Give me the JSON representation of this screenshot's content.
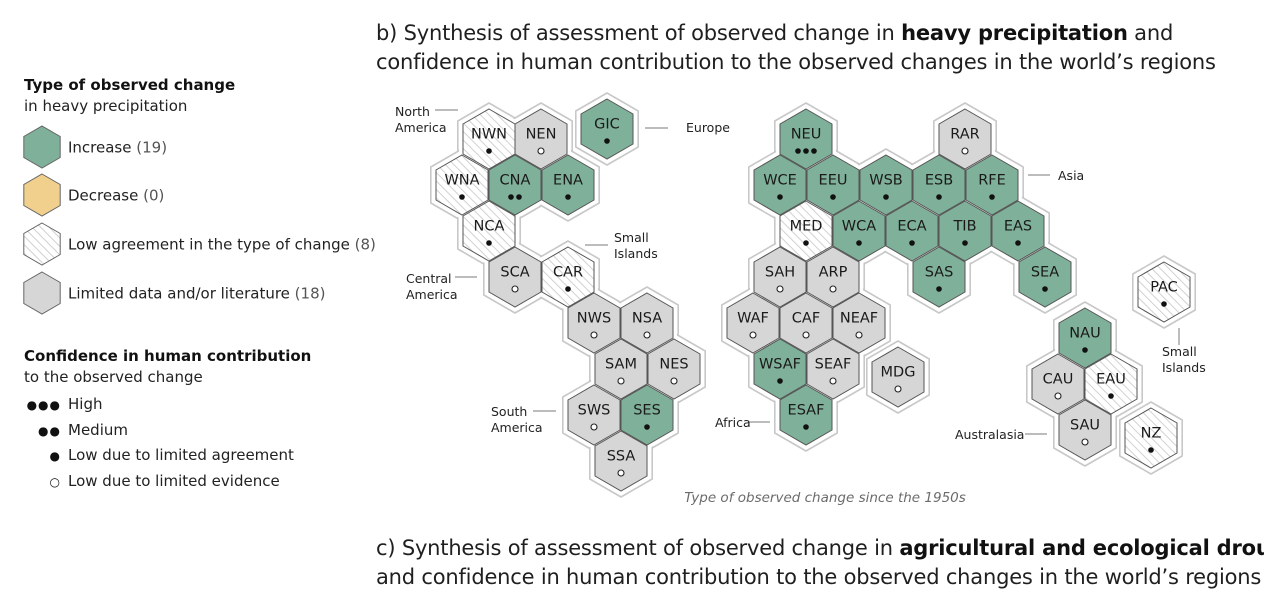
{
  "legend": {
    "type_heading": "Type of observed change",
    "type_sub": "in heavy precipitation",
    "items": [
      {
        "key": "increase",
        "label": "Increase",
        "count": "(19)"
      },
      {
        "key": "decrease",
        "label": "Decrease",
        "count": "(0)"
      },
      {
        "key": "low",
        "label": "Low agreement in the type of change",
        "count": "(8)"
      },
      {
        "key": "limited",
        "label": "Limited data and/or literature",
        "count": "(18)"
      }
    ],
    "conf_heading": "Confidence in human contribution",
    "conf_sub": "to the observed change",
    "conf_items": [
      {
        "dots": "●●●",
        "label": "High"
      },
      {
        "dots": "●●",
        "label": "Medium"
      },
      {
        "dots": "●",
        "label": "Low due to limited agreement"
      },
      {
        "dots": "○",
        "label": "Low due to limited evidence"
      }
    ]
  },
  "title_b": {
    "line1_pre": "b) Synthesis of assessment of observed change in ",
    "line1_bold": "heavy precipitation",
    "line1_post": " and",
    "line2": "confidence in human contribution to the observed changes in the world’s regions"
  },
  "title_c": {
    "line1_pre": "c) Synthesis of assessment of observed change in ",
    "line1_bold": "agricultural and ecological drought",
    "line2": "and confidence in human contribution to the observed changes in the world’s regions"
  },
  "caption": "Type of observed change since the 1950s",
  "colors": {
    "increase": "#7fb09a",
    "decrease": "#f1cf8c",
    "limited": "#d6d6d6",
    "low": "#ffffff",
    "stroke": "#4a4a4a",
    "halo": "#c8c8c8"
  },
  "continent_labels": [
    {
      "id": "north-america",
      "text": [
        "North",
        "America"
      ]
    },
    {
      "id": "europe",
      "text": [
        "Europe"
      ]
    },
    {
      "id": "asia",
      "text": [
        "Asia"
      ]
    },
    {
      "id": "small-islands-1",
      "text": [
        "Small",
        "Islands"
      ]
    },
    {
      "id": "central-america",
      "text": [
        "Central",
        "America"
      ]
    },
    {
      "id": "south-america",
      "text": [
        "South",
        "America"
      ]
    },
    {
      "id": "africa",
      "text": [
        "Africa"
      ]
    },
    {
      "id": "australasia",
      "text": [
        "Australasia"
      ]
    },
    {
      "id": "small-islands-2",
      "text": [
        "Small",
        "Islands"
      ]
    }
  ],
  "regions": [
    {
      "code": "NWN",
      "type": "low",
      "conf": "low-agreement"
    },
    {
      "code": "NEN",
      "type": "limited",
      "conf": "limited-evidence"
    },
    {
      "code": "GIC",
      "type": "increase",
      "conf": "low-agreement"
    },
    {
      "code": "WNA",
      "type": "low",
      "conf": "low-agreement"
    },
    {
      "code": "CNA",
      "type": "increase",
      "conf": "medium"
    },
    {
      "code": "ENA",
      "type": "increase",
      "conf": "low-agreement"
    },
    {
      "code": "NCA",
      "type": "low",
      "conf": "low-agreement"
    },
    {
      "code": "SCA",
      "type": "limited",
      "conf": "limited-evidence"
    },
    {
      "code": "CAR",
      "type": "low",
      "conf": "low-agreement"
    },
    {
      "code": "NWS",
      "type": "limited",
      "conf": "limited-evidence"
    },
    {
      "code": "NSA",
      "type": "limited",
      "conf": "limited-evidence"
    },
    {
      "code": "SAM",
      "type": "limited",
      "conf": "limited-evidence"
    },
    {
      "code": "NES",
      "type": "limited",
      "conf": "limited-evidence"
    },
    {
      "code": "SWS",
      "type": "limited",
      "conf": "limited-evidence"
    },
    {
      "code": "SES",
      "type": "increase",
      "conf": "low-agreement"
    },
    {
      "code": "SSA",
      "type": "limited",
      "conf": "limited-evidence"
    },
    {
      "code": "NEU",
      "type": "increase",
      "conf": "high"
    },
    {
      "code": "RAR",
      "type": "limited",
      "conf": "limited-evidence"
    },
    {
      "code": "WCE",
      "type": "increase",
      "conf": "low-agreement"
    },
    {
      "code": "EEU",
      "type": "increase",
      "conf": "low-agreement"
    },
    {
      "code": "WSB",
      "type": "increase",
      "conf": "low-agreement"
    },
    {
      "code": "ESB",
      "type": "increase",
      "conf": "low-agreement"
    },
    {
      "code": "RFE",
      "type": "increase",
      "conf": "low-agreement"
    },
    {
      "code": "MED",
      "type": "low",
      "conf": "low-agreement"
    },
    {
      "code": "WCA",
      "type": "increase",
      "conf": "low-agreement"
    },
    {
      "code": "ECA",
      "type": "increase",
      "conf": "low-agreement"
    },
    {
      "code": "TIB",
      "type": "increase",
      "conf": "low-agreement"
    },
    {
      "code": "EAS",
      "type": "increase",
      "conf": "low-agreement"
    },
    {
      "code": "SAH",
      "type": "limited",
      "conf": "limited-evidence"
    },
    {
      "code": "ARP",
      "type": "limited",
      "conf": "limited-evidence"
    },
    {
      "code": "SAS",
      "type": "increase",
      "conf": "low-agreement"
    },
    {
      "code": "SEA",
      "type": "increase",
      "conf": "low-agreement"
    },
    {
      "code": "WAF",
      "type": "limited",
      "conf": "limited-evidence"
    },
    {
      "code": "CAF",
      "type": "limited",
      "conf": "limited-evidence"
    },
    {
      "code": "NEAF",
      "type": "limited",
      "conf": "limited-evidence"
    },
    {
      "code": "WSAF",
      "type": "increase",
      "conf": "low-agreement"
    },
    {
      "code": "SEAF",
      "type": "limited",
      "conf": "limited-evidence"
    },
    {
      "code": "ESAF",
      "type": "increase",
      "conf": "low-agreement"
    },
    {
      "code": "MDG",
      "type": "limited",
      "conf": "limited-evidence"
    },
    {
      "code": "PAC",
      "type": "low",
      "conf": "low-agreement"
    },
    {
      "code": "NAU",
      "type": "increase",
      "conf": "low-agreement"
    },
    {
      "code": "CAU",
      "type": "limited",
      "conf": "limited-evidence"
    },
    {
      "code": "EAU",
      "type": "low",
      "conf": "low-agreement"
    },
    {
      "code": "SAU",
      "type": "limited",
      "conf": "limited-evidence"
    },
    {
      "code": "NZ",
      "type": "low",
      "conf": "low-agreement"
    }
  ]
}
